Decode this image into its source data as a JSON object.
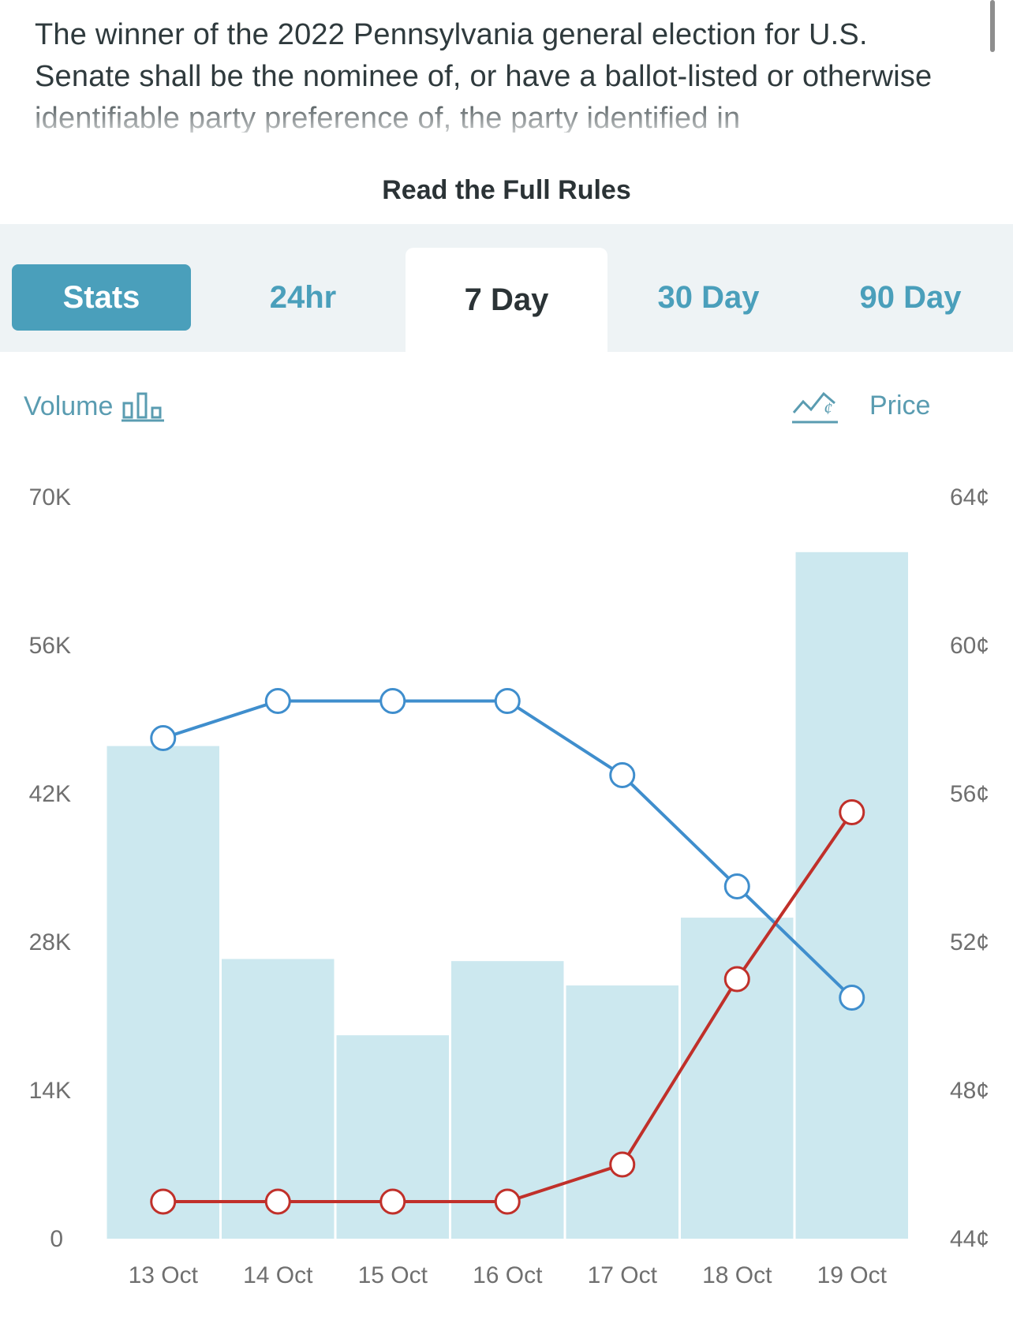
{
  "rules": {
    "text": "The winner of the 2022 Pennsylvania general election for U.S. Senate shall be the nominee of, or have a ballot-listed or otherwise identifiable party preference of, the party identified in",
    "read_full_label": "Read the Full Rules"
  },
  "tabs": {
    "stats": "Stats",
    "h24": "24hr",
    "d7": "7 Day",
    "d30": "30 Day",
    "d90": "90 Day",
    "active": "7 Day"
  },
  "legend": {
    "volume_label": "Volume",
    "price_label": "Price",
    "volume_icon": "bar-chart-icon",
    "price_icon": "price-line-icon"
  },
  "colors": {
    "accent": "#4a9fbb",
    "bar": "#cce8ef",
    "blue_line": "#3f8ecd",
    "red_line": "#c0302a"
  },
  "chart_data": {
    "type": "bar",
    "categories": [
      "13 Oct",
      "14 Oct",
      "15 Oct",
      "16 Oct",
      "17 Oct",
      "18 Oct",
      "19 Oct"
    ],
    "volume": [
      46500,
      26400,
      19200,
      26200,
      23900,
      30300,
      64800
    ],
    "volume_axis": {
      "ticks": [
        "0",
        "14K",
        "28K",
        "42K",
        "56K",
        "70K"
      ],
      "ylim": [
        0,
        70000
      ]
    },
    "price_axis": {
      "ticks": [
        "44¢",
        "48¢",
        "52¢",
        "56¢",
        "60¢",
        "64¢"
      ],
      "ylim": [
        44,
        64
      ],
      "unit": "¢"
    },
    "series": [
      {
        "type": "line",
        "values": [
          57.5,
          58.5,
          58.5,
          58.5,
          56.5,
          53.5,
          50.5
        ]
      },
      {
        "type": "line",
        "values": [
          45.0,
          45.0,
          45.0,
          45.0,
          46.0,
          51.0,
          55.5
        ]
      }
    ],
    "grid": false
  }
}
